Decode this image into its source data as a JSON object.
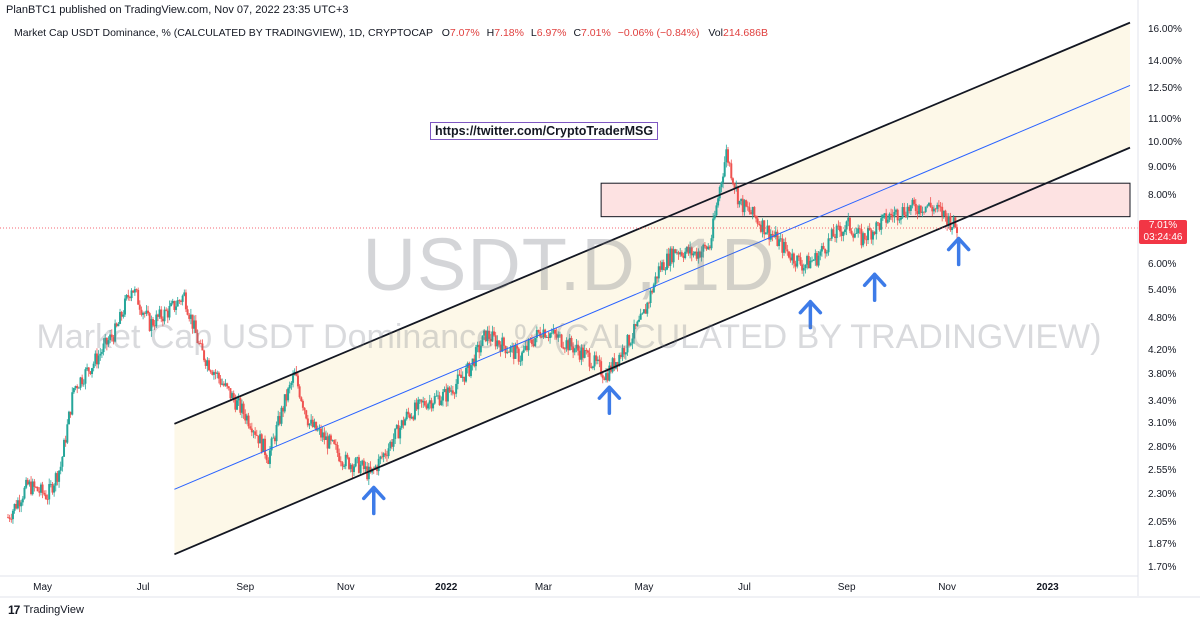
{
  "header": {
    "published": "PlanBTC1 published on TradingView.com, Nov 07, 2022 23:35 UTC+3"
  },
  "legend": {
    "symbol": "Market Cap USDT Dominance, %  (CALCULATED BY TRADINGVIEW), 1D, CRYPTOCAP",
    "o_key": "O",
    "o_val": "7.07%",
    "h_key": "H",
    "h_val": "7.18%",
    "l_key": "L",
    "l_val": "6.97%",
    "c_key": "C",
    "c_val": "7.01%",
    "change": "−0.06% (−0.84%)",
    "vol_key": "Vol",
    "vol_val": "214.686B"
  },
  "watermark": {
    "ticker": "USDT.D, 1D",
    "description": "Market Cap USDT Dominance, % (CALCULATED BY TRADINGVIEW)"
  },
  "annotation_link": "https://twitter.com/CryptoTraderMSG",
  "price_label": {
    "value": "7.01%",
    "countdown": "03:24:46"
  },
  "footer": {
    "brand": "TradingView"
  },
  "colors": {
    "up": "#26a69a",
    "down": "#ef5350",
    "channel": "#131722",
    "midline": "#2962ff",
    "resistance_fill": "#fde2e2",
    "price_tag": "#f23645",
    "arrows": "#3d7be8",
    "channel_fill": "#fdf8e8"
  },
  "chart_data": {
    "type": "candlestick",
    "symbol": "USDT.D",
    "timeframe": "1D",
    "y_scale": "log",
    "y_ticks": [
      "16.00%",
      "14.00%",
      "12.50%",
      "11.00%",
      "10.00%",
      "9.00%",
      "8.00%",
      "6.00%",
      "5.40%",
      "4.80%",
      "4.20%",
      "3.80%",
      "3.40%",
      "3.10%",
      "2.80%",
      "2.55%",
      "2.30%",
      "2.05%",
      "1.87%",
      "1.70%"
    ],
    "x_ticks": [
      {
        "label": "May",
        "date": "2021-05-01",
        "bold": false
      },
      {
        "label": "Jul",
        "date": "2021-07-01",
        "bold": false
      },
      {
        "label": "Sep",
        "date": "2021-09-01",
        "bold": false
      },
      {
        "label": "Nov",
        "date": "2021-11-01",
        "bold": false
      },
      {
        "label": "2022",
        "date": "2022-01-01",
        "bold": true
      },
      {
        "label": "Mar",
        "date": "2022-03-01",
        "bold": false
      },
      {
        "label": "May",
        "date": "2022-05-01",
        "bold": false
      },
      {
        "label": "Jul",
        "date": "2022-07-01",
        "bold": false
      },
      {
        "label": "Sep",
        "date": "2022-09-01",
        "bold": false
      },
      {
        "label": "Nov",
        "date": "2022-11-01",
        "bold": false
      },
      {
        "label": "2023",
        "date": "2023-01-01",
        "bold": true
      }
    ],
    "last_price": 7.01,
    "price_path_anchors": [
      [
        "2021-04-10",
        2.1
      ],
      [
        "2021-04-22",
        2.4
      ],
      [
        "2021-05-04",
        2.3
      ],
      [
        "2021-05-12",
        2.6
      ],
      [
        "2021-05-20",
        3.6
      ],
      [
        "2021-06-01",
        4.0
      ],
      [
        "2021-06-15",
        4.6
      ],
      [
        "2021-06-24",
        5.5
      ],
      [
        "2021-07-05",
        4.7
      ],
      [
        "2021-07-18",
        5.0
      ],
      [
        "2021-07-26",
        5.3
      ],
      [
        "2021-08-05",
        4.2
      ],
      [
        "2021-08-20",
        3.6
      ],
      [
        "2021-09-05",
        3.1
      ],
      [
        "2021-09-15",
        2.7
      ],
      [
        "2021-09-25",
        3.4
      ],
      [
        "2021-10-01",
        3.8
      ],
      [
        "2021-10-10",
        3.1
      ],
      [
        "2021-10-20",
        2.9
      ],
      [
        "2021-11-01",
        2.65
      ],
      [
        "2021-11-10",
        2.6
      ],
      [
        "2021-11-16",
        2.5
      ],
      [
        "2021-11-28",
        2.85
      ],
      [
        "2021-12-08",
        3.2
      ],
      [
        "2021-12-20",
        3.4
      ],
      [
        "2022-01-01",
        3.5
      ],
      [
        "2022-01-15",
        3.9
      ],
      [
        "2022-01-25",
        4.5
      ],
      [
        "2022-02-05",
        4.3
      ],
      [
        "2022-02-15",
        4.1
      ],
      [
        "2022-02-28",
        4.6
      ],
      [
        "2022-03-12",
        4.4
      ],
      [
        "2022-03-28",
        4.1
      ],
      [
        "2022-04-08",
        3.8
      ],
      [
        "2022-04-20",
        4.3
      ],
      [
        "2022-04-30",
        4.8
      ],
      [
        "2022-05-10",
        5.9
      ],
      [
        "2022-05-20",
        6.4
      ],
      [
        "2022-06-01",
        6.3
      ],
      [
        "2022-06-10",
        6.5
      ],
      [
        "2022-06-16",
        8.3
      ],
      [
        "2022-06-20",
        9.6
      ],
      [
        "2022-06-28",
        7.8
      ],
      [
        "2022-07-08",
        7.3
      ],
      [
        "2022-07-18",
        6.8
      ],
      [
        "2022-07-28",
        6.3
      ],
      [
        "2022-08-06",
        6.0
      ],
      [
        "2022-08-14",
        6.2
      ],
      [
        "2022-08-24",
        6.8
      ],
      [
        "2022-09-02",
        7.1
      ],
      [
        "2022-09-10",
        6.7
      ],
      [
        "2022-09-18",
        7.0
      ],
      [
        "2022-09-28",
        7.4
      ],
      [
        "2022-10-08",
        7.6
      ],
      [
        "2022-10-20",
        7.7
      ],
      [
        "2022-10-28",
        7.5
      ],
      [
        "2022-11-07",
        7.01
      ]
    ],
    "channel_upper": [
      [
        "2021-07-20",
        3.1
      ],
      [
        "2023-02-20",
        16.5
      ]
    ],
    "channel_lower": [
      [
        "2021-07-20",
        1.8
      ],
      [
        "2023-02-20",
        9.8
      ]
    ],
    "channel_mid": [
      [
        "2021-07-20",
        2.36
      ],
      [
        "2023-02-20",
        12.7
      ]
    ],
    "resistance_zone": {
      "from": "2022-04-05",
      "to": "2023-02-20",
      "low": 7.35,
      "high": 8.45
    },
    "support_bounces": [
      "2021-11-18",
      "2022-04-10",
      "2022-08-10",
      "2022-09-18",
      "2022-11-08"
    ]
  }
}
